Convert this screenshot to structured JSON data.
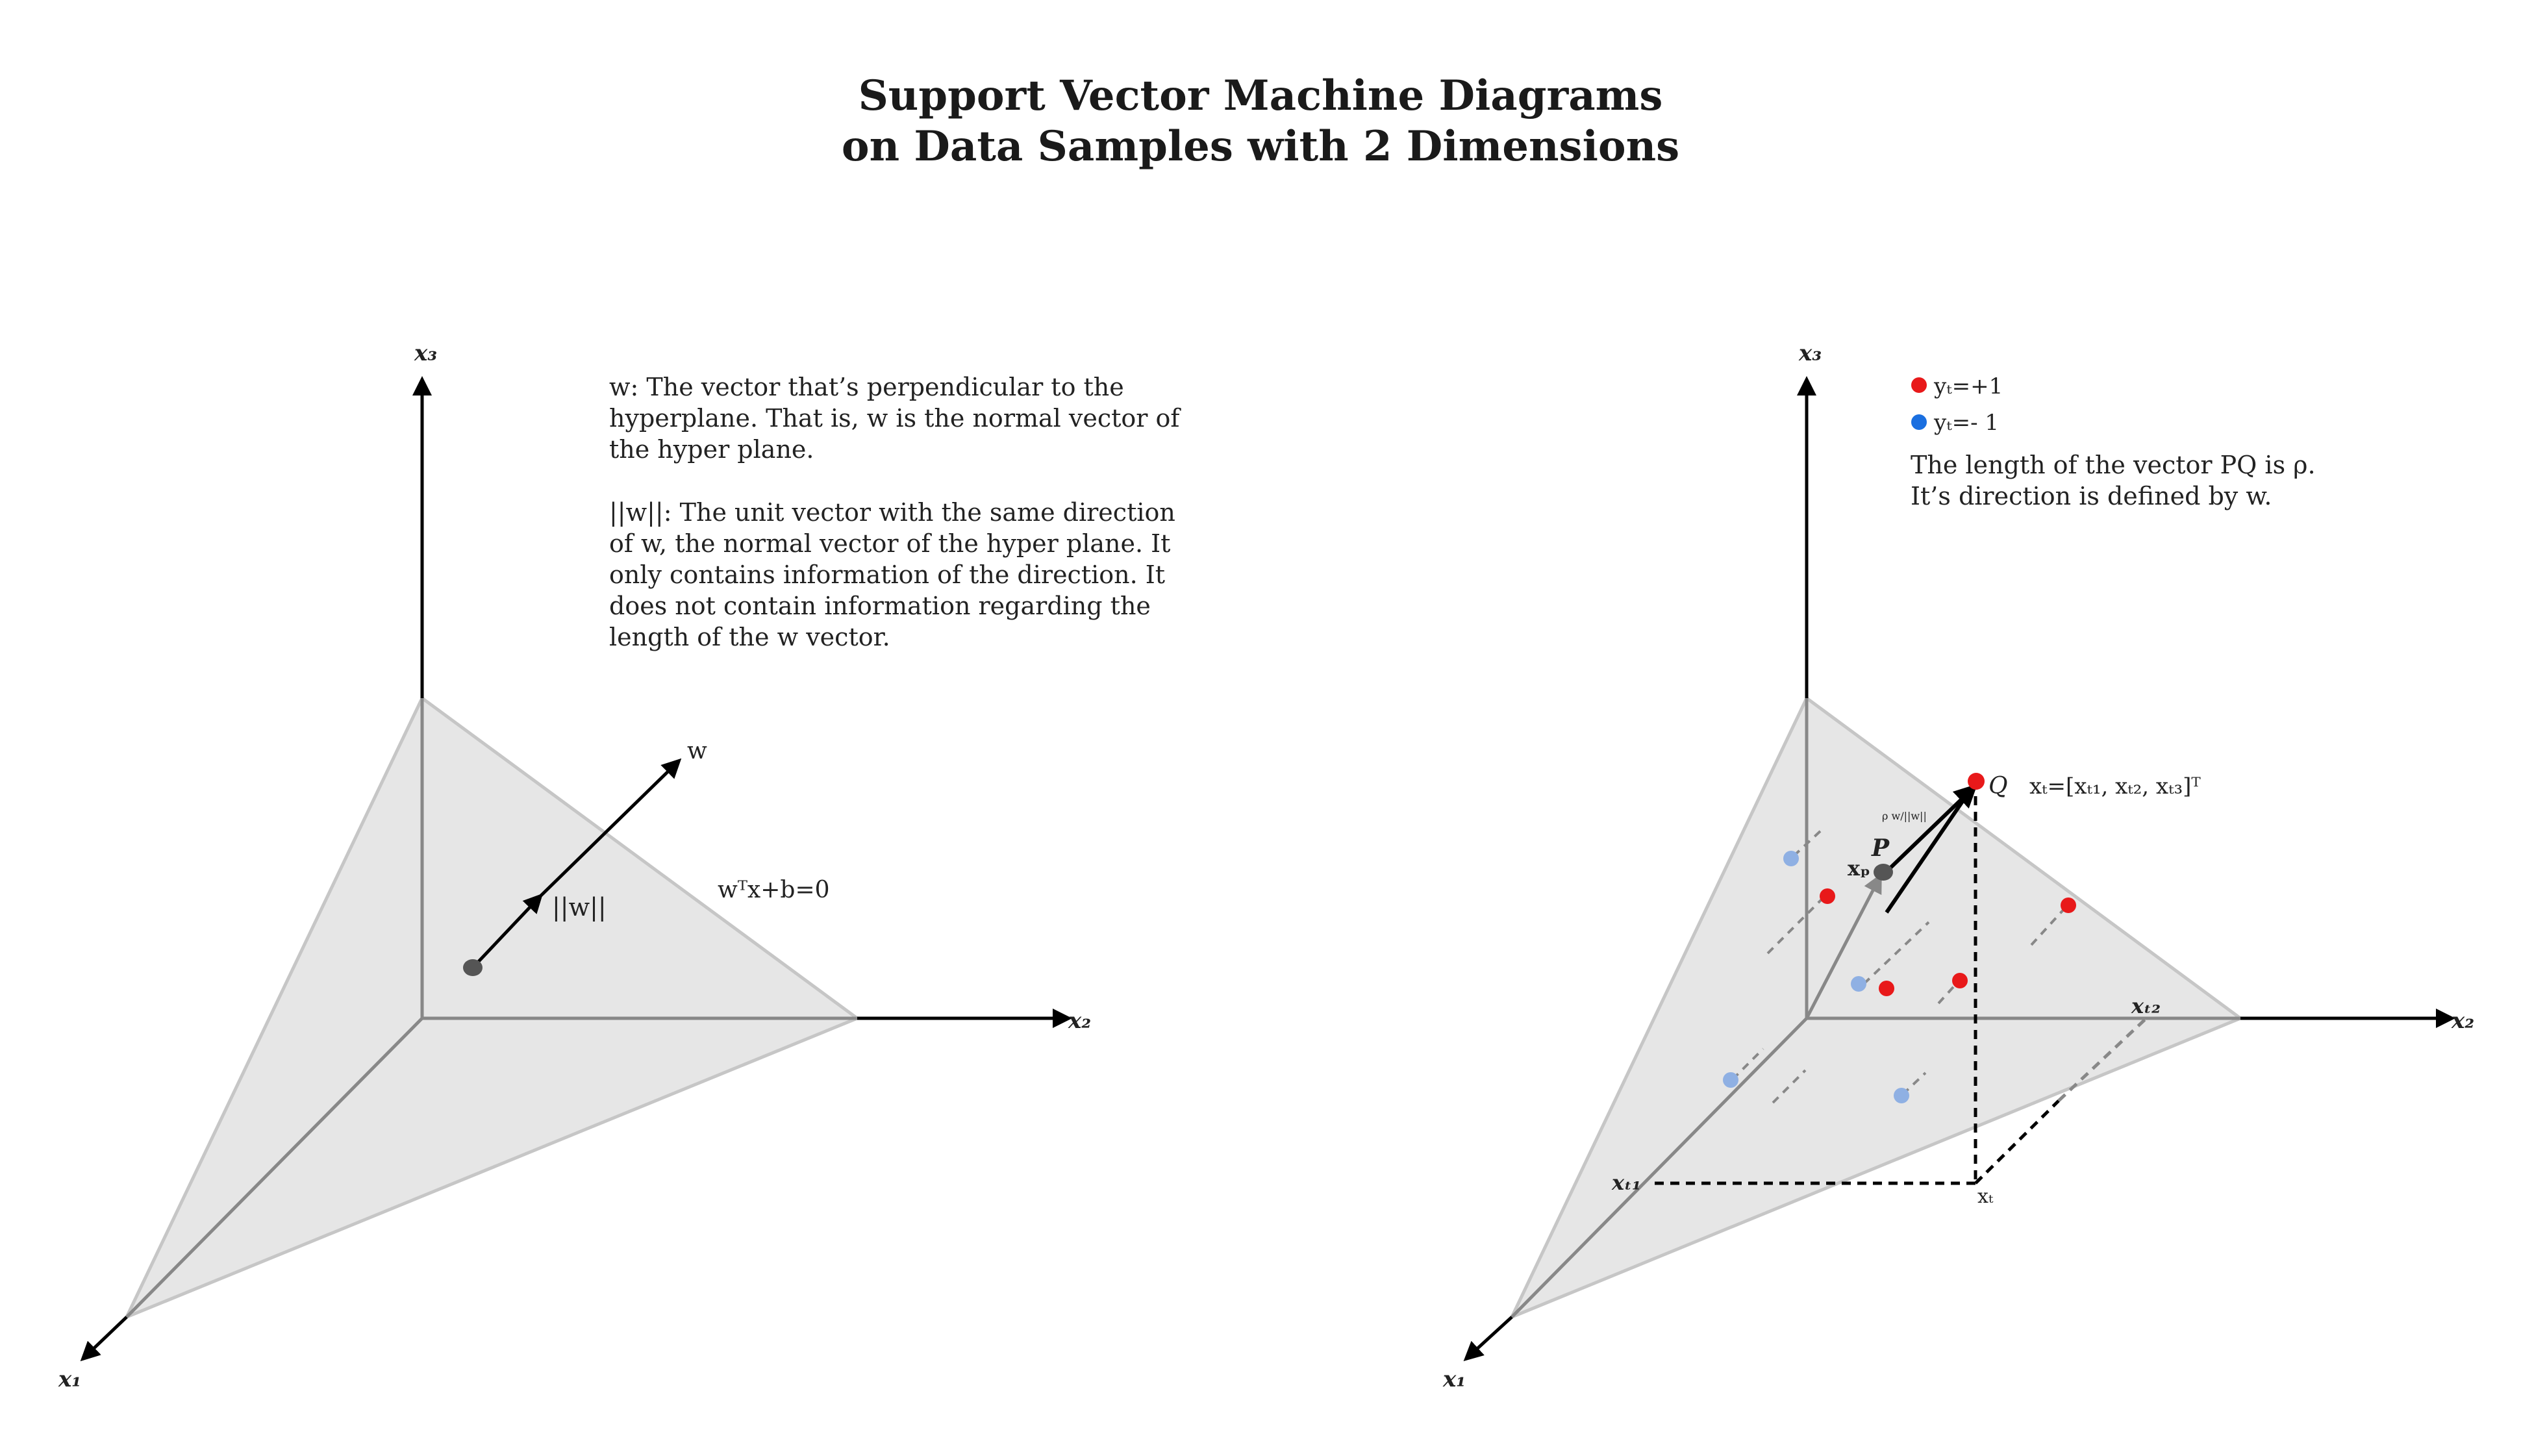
{
  "title": {
    "line1": "Support Vector Machine Diagrams",
    "line2": "on Data Samples with 2 Dimensions"
  },
  "left_diagram": {
    "axis_x1": "x₁",
    "axis_x2": "x₂",
    "axis_x3": "x₃",
    "vector_w": "w",
    "unit_vector": "||w||",
    "plane_equation": "wᵀx+b=0",
    "note_w": "w: The vector that’s perpendicular to the hyperplane. That is, w is the normal vector of the hyper plane.",
    "note_unit": "||w||: The unit vector with the same direction of w, the normal vector of the hyper plane. It only contains information of the direction. It does not contain information regarding the length of the w vector."
  },
  "right_diagram": {
    "axis_x1": "x₁",
    "axis_x2": "x₂",
    "axis_x3": "x₃",
    "legend_pos": "yₜ=+1",
    "legend_neg": "yₜ=- 1",
    "note_pq": "The length of the vector PQ is ρ.",
    "note_dir": "It’s direction is defined by w.",
    "point_q": "Q",
    "point_p": "P",
    "point_xp": "xₚ",
    "point_xt": "xₜ",
    "xt_def": "xₜ=[xₜ₁, xₜ₂, xₜ₃]ᵀ",
    "tick_xt1": "xₜ₁",
    "tick_xt2": "xₜ₂",
    "rho_fraction": "ρ w/||w||"
  },
  "colors": {
    "positive": "#e8191a",
    "negative": "#8fb0e3",
    "legend_negative": "#1a6fe0",
    "plane": "#e6e6e6",
    "plane_edge": "#c6c6c6"
  }
}
